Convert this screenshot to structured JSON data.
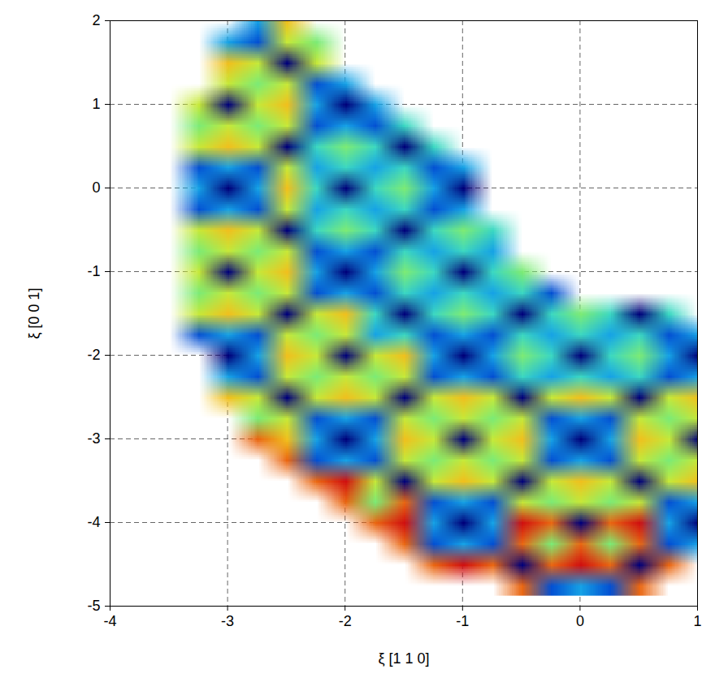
{
  "chart_data": {
    "type": "heatmap",
    "x_label": "ξ [1 1 0]",
    "y_label": "ξ [0 0 1]",
    "xlim": [
      -4,
      1
    ],
    "ylim": [
      -5,
      2
    ],
    "xticks": [
      -4,
      -3,
      -2,
      -1,
      0,
      1
    ],
    "yticks": [
      -5,
      -4,
      -3,
      -2,
      -1,
      0,
      1,
      2
    ],
    "grid": true,
    "x": [
      -3.5,
      -3.25,
      -3,
      -2.75,
      -2.5,
      -2.25,
      -2,
      -1.75,
      -1.5,
      -1.25,
      -1,
      -0.75,
      -0.5,
      -0.25,
      0,
      0.25,
      0.5,
      0.75,
      1
    ],
    "y": [
      2,
      1.75,
      1.5,
      1.25,
      1,
      0.75,
      0.5,
      0.25,
      0,
      -0.25,
      -0.5,
      -0.75,
      -1,
      -1.25,
      -1.5,
      -1.75,
      -2,
      -2.25,
      -2.5,
      -2.75,
      -3,
      -3.25,
      -3.5,
      -3.75,
      -4,
      -4.25,
      -4.5,
      -4.75
    ],
    "cells": [
      [
        null,
        null,
        null,
        4,
        8,
        null,
        null,
        null,
        null,
        null,
        null,
        null,
        null,
        null,
        null,
        null,
        null,
        null,
        null
      ],
      [
        null,
        null,
        4,
        3,
        7,
        6,
        null,
        null,
        null,
        null,
        null,
        null,
        null,
        null,
        null,
        null,
        null,
        null,
        null
      ],
      [
        null,
        null,
        8,
        7,
        1,
        7,
        null,
        null,
        null,
        null,
        null,
        null,
        null,
        null,
        null,
        null,
        null,
        null,
        null
      ],
      [
        null,
        null,
        7,
        6,
        7,
        3,
        4,
        null,
        null,
        null,
        null,
        null,
        null,
        null,
        null,
        null,
        null,
        null,
        null
      ],
      [
        null,
        7,
        1,
        7,
        8,
        4,
        1,
        4,
        null,
        null,
        null,
        null,
        null,
        null,
        null,
        null,
        null,
        null,
        null
      ],
      [
        null,
        6,
        7,
        6,
        7,
        3,
        4,
        3,
        5,
        null,
        null,
        null,
        null,
        null,
        null,
        null,
        null,
        null,
        null
      ],
      [
        null,
        7,
        8,
        7,
        1,
        5,
        6,
        5,
        1,
        5,
        null,
        null,
        null,
        null,
        null,
        null,
        null,
        null,
        null
      ],
      [
        null,
        3,
        4,
        3,
        7,
        4,
        5,
        4,
        5,
        3,
        4,
        null,
        null,
        null,
        null,
        null,
        null,
        null,
        null
      ],
      [
        null,
        4,
        1,
        4,
        8,
        5,
        1,
        5,
        6,
        4,
        1,
        null,
        null,
        null,
        null,
        null,
        null,
        null,
        null
      ],
      [
        null,
        3,
        4,
        3,
        7,
        4,
        5,
        4,
        5,
        3,
        4,
        null,
        null,
        null,
        null,
        null,
        null,
        null,
        null
      ],
      [
        null,
        7,
        8,
        7,
        1,
        5,
        6,
        5,
        1,
        5,
        6,
        5,
        null,
        null,
        null,
        null,
        null,
        null,
        null
      ],
      [
        null,
        6,
        7,
        6,
        7,
        3,
        4,
        3,
        5,
        4,
        5,
        4,
        null,
        null,
        null,
        null,
        null,
        null,
        null
      ],
      [
        null,
        7,
        1,
        7,
        8,
        4,
        1,
        4,
        6,
        5,
        1,
        5,
        6,
        null,
        null,
        null,
        null,
        null,
        null
      ],
      [
        null,
        6,
        7,
        6,
        7,
        3,
        4,
        3,
        5,
        4,
        5,
        4,
        5,
        3,
        null,
        null,
        null,
        null,
        null
      ],
      [
        null,
        7,
        8,
        7,
        1,
        7,
        8,
        5,
        1,
        5,
        6,
        5,
        1,
        5,
        6,
        5,
        1,
        5,
        null
      ],
      [
        null,
        3,
        4,
        3,
        7,
        6,
        7,
        4,
        5,
        3,
        4,
        3,
        5,
        4,
        5,
        4,
        5,
        3,
        4
      ],
      [
        null,
        null,
        1,
        4,
        8,
        7,
        1,
        7,
        8,
        4,
        1,
        4,
        6,
        5,
        1,
        5,
        6,
        4,
        1
      ],
      [
        null,
        null,
        4,
        3,
        7,
        6,
        7,
        6,
        7,
        3,
        4,
        3,
        5,
        4,
        5,
        4,
        5,
        3,
        4
      ],
      [
        null,
        null,
        8,
        7,
        1,
        7,
        8,
        7,
        1,
        7,
        8,
        7,
        1,
        7,
        8,
        7,
        1,
        7,
        8
      ],
      [
        null,
        null,
        null,
        6,
        7,
        3,
        4,
        3,
        7,
        6,
        7,
        6,
        7,
        3,
        4,
        3,
        7,
        6,
        7
      ],
      [
        null,
        null,
        null,
        9,
        8,
        4,
        1,
        4,
        8,
        7,
        1,
        7,
        8,
        4,
        1,
        4,
        8,
        7,
        1
      ],
      [
        null,
        null,
        null,
        null,
        9,
        3,
        4,
        3,
        7,
        6,
        7,
        6,
        7,
        3,
        4,
        3,
        7,
        6,
        7
      ],
      [
        null,
        null,
        null,
        null,
        null,
        9,
        10,
        7,
        1,
        7,
        8,
        7,
        1,
        7,
        8,
        7,
        1,
        7,
        8
      ],
      [
        null,
        null,
        null,
        null,
        null,
        null,
        9,
        6,
        9,
        3,
        4,
        3,
        7,
        6,
        7,
        6,
        7,
        3,
        4
      ],
      [
        null,
        null,
        null,
        null,
        null,
        null,
        null,
        9,
        10,
        4,
        1,
        4,
        10,
        9,
        1,
        9,
        10,
        4,
        1
      ],
      [
        null,
        null,
        null,
        null,
        null,
        null,
        null,
        null,
        9,
        3,
        4,
        3,
        9,
        6,
        9,
        6,
        9,
        3,
        4
      ],
      [
        null,
        null,
        null,
        null,
        null,
        null,
        null,
        null,
        null,
        9,
        10,
        9,
        1,
        9,
        10,
        9,
        1,
        9,
        null
      ],
      [
        null,
        null,
        null,
        null,
        null,
        null,
        null,
        null,
        null,
        null,
        null,
        null,
        9,
        3,
        4,
        3,
        9,
        null,
        null
      ]
    ]
  }
}
